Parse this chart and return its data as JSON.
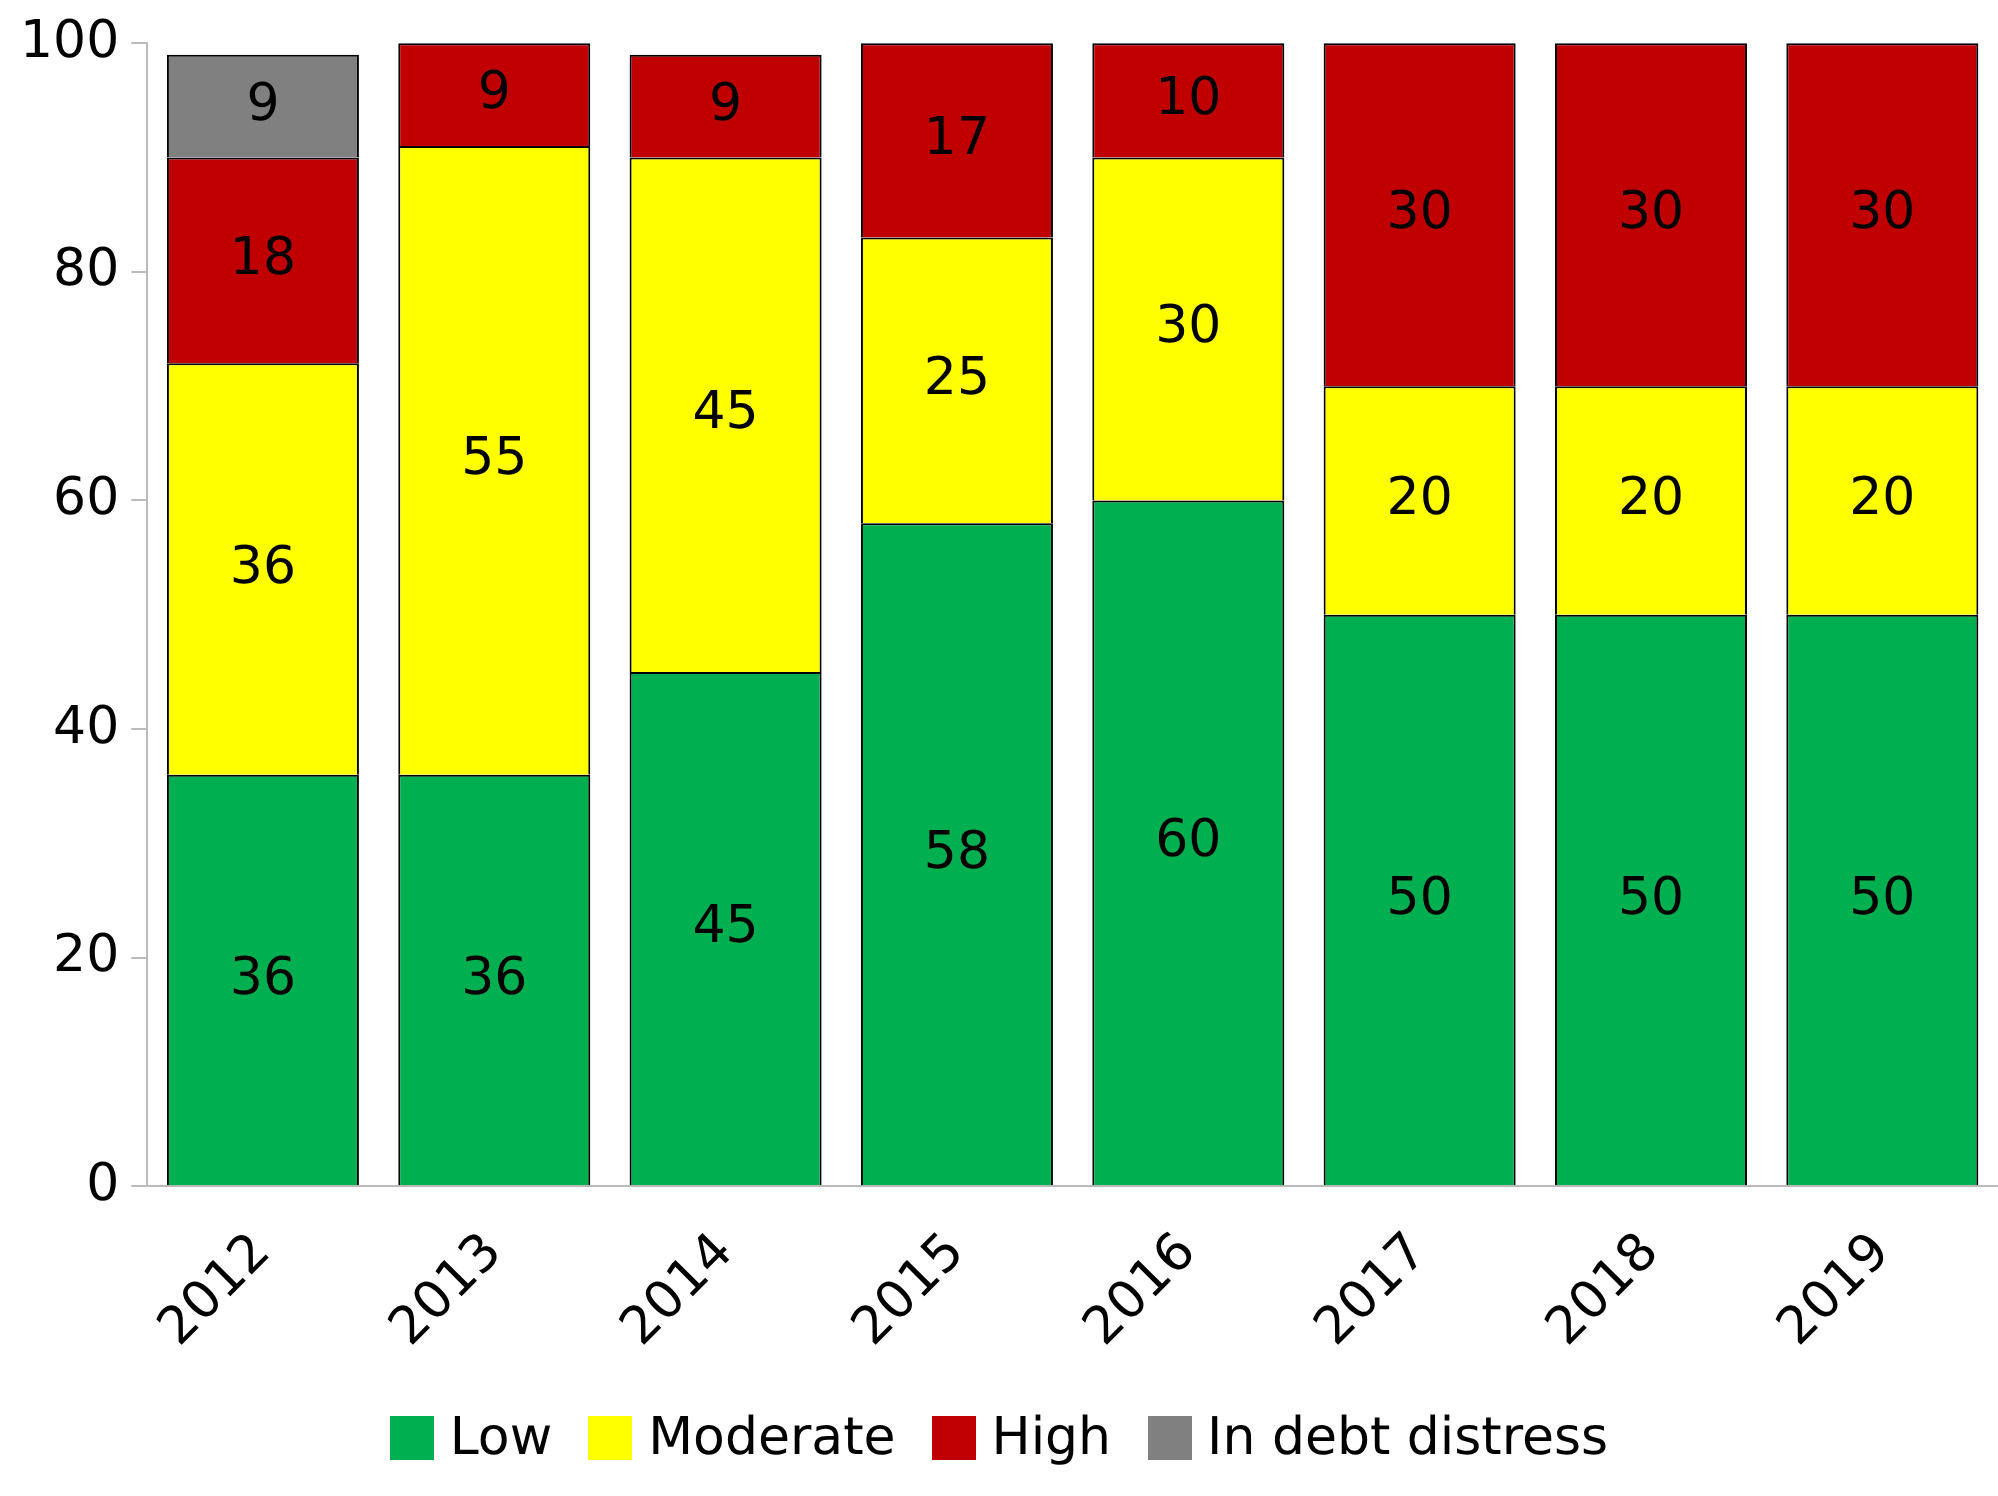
{
  "chart_data": {
    "type": "bar",
    "stacked": true,
    "categories": [
      "2012",
      "2013",
      "2014",
      "2015",
      "2016",
      "2017",
      "2018",
      "2019"
    ],
    "series": [
      {
        "name": "Low",
        "color": "#00b050",
        "values": [
          36,
          36,
          45,
          58,
          60,
          50,
          50,
          50
        ]
      },
      {
        "name": "Moderate",
        "color": "#ffff00",
        "values": [
          36,
          55,
          45,
          25,
          30,
          20,
          20,
          20
        ]
      },
      {
        "name": "High",
        "color": "#c00000",
        "values": [
          18,
          9,
          9,
          17,
          10,
          30,
          30,
          30
        ]
      },
      {
        "name": "In debt distress",
        "color": "#808080",
        "values": [
          9,
          null,
          null,
          null,
          null,
          null,
          null,
          null
        ]
      }
    ],
    "ylim": [
      0,
      100
    ],
    "yticks": [
      0,
      20,
      40,
      60,
      80,
      100
    ],
    "grid": false,
    "legend": "bottom",
    "data_labels": true
  }
}
